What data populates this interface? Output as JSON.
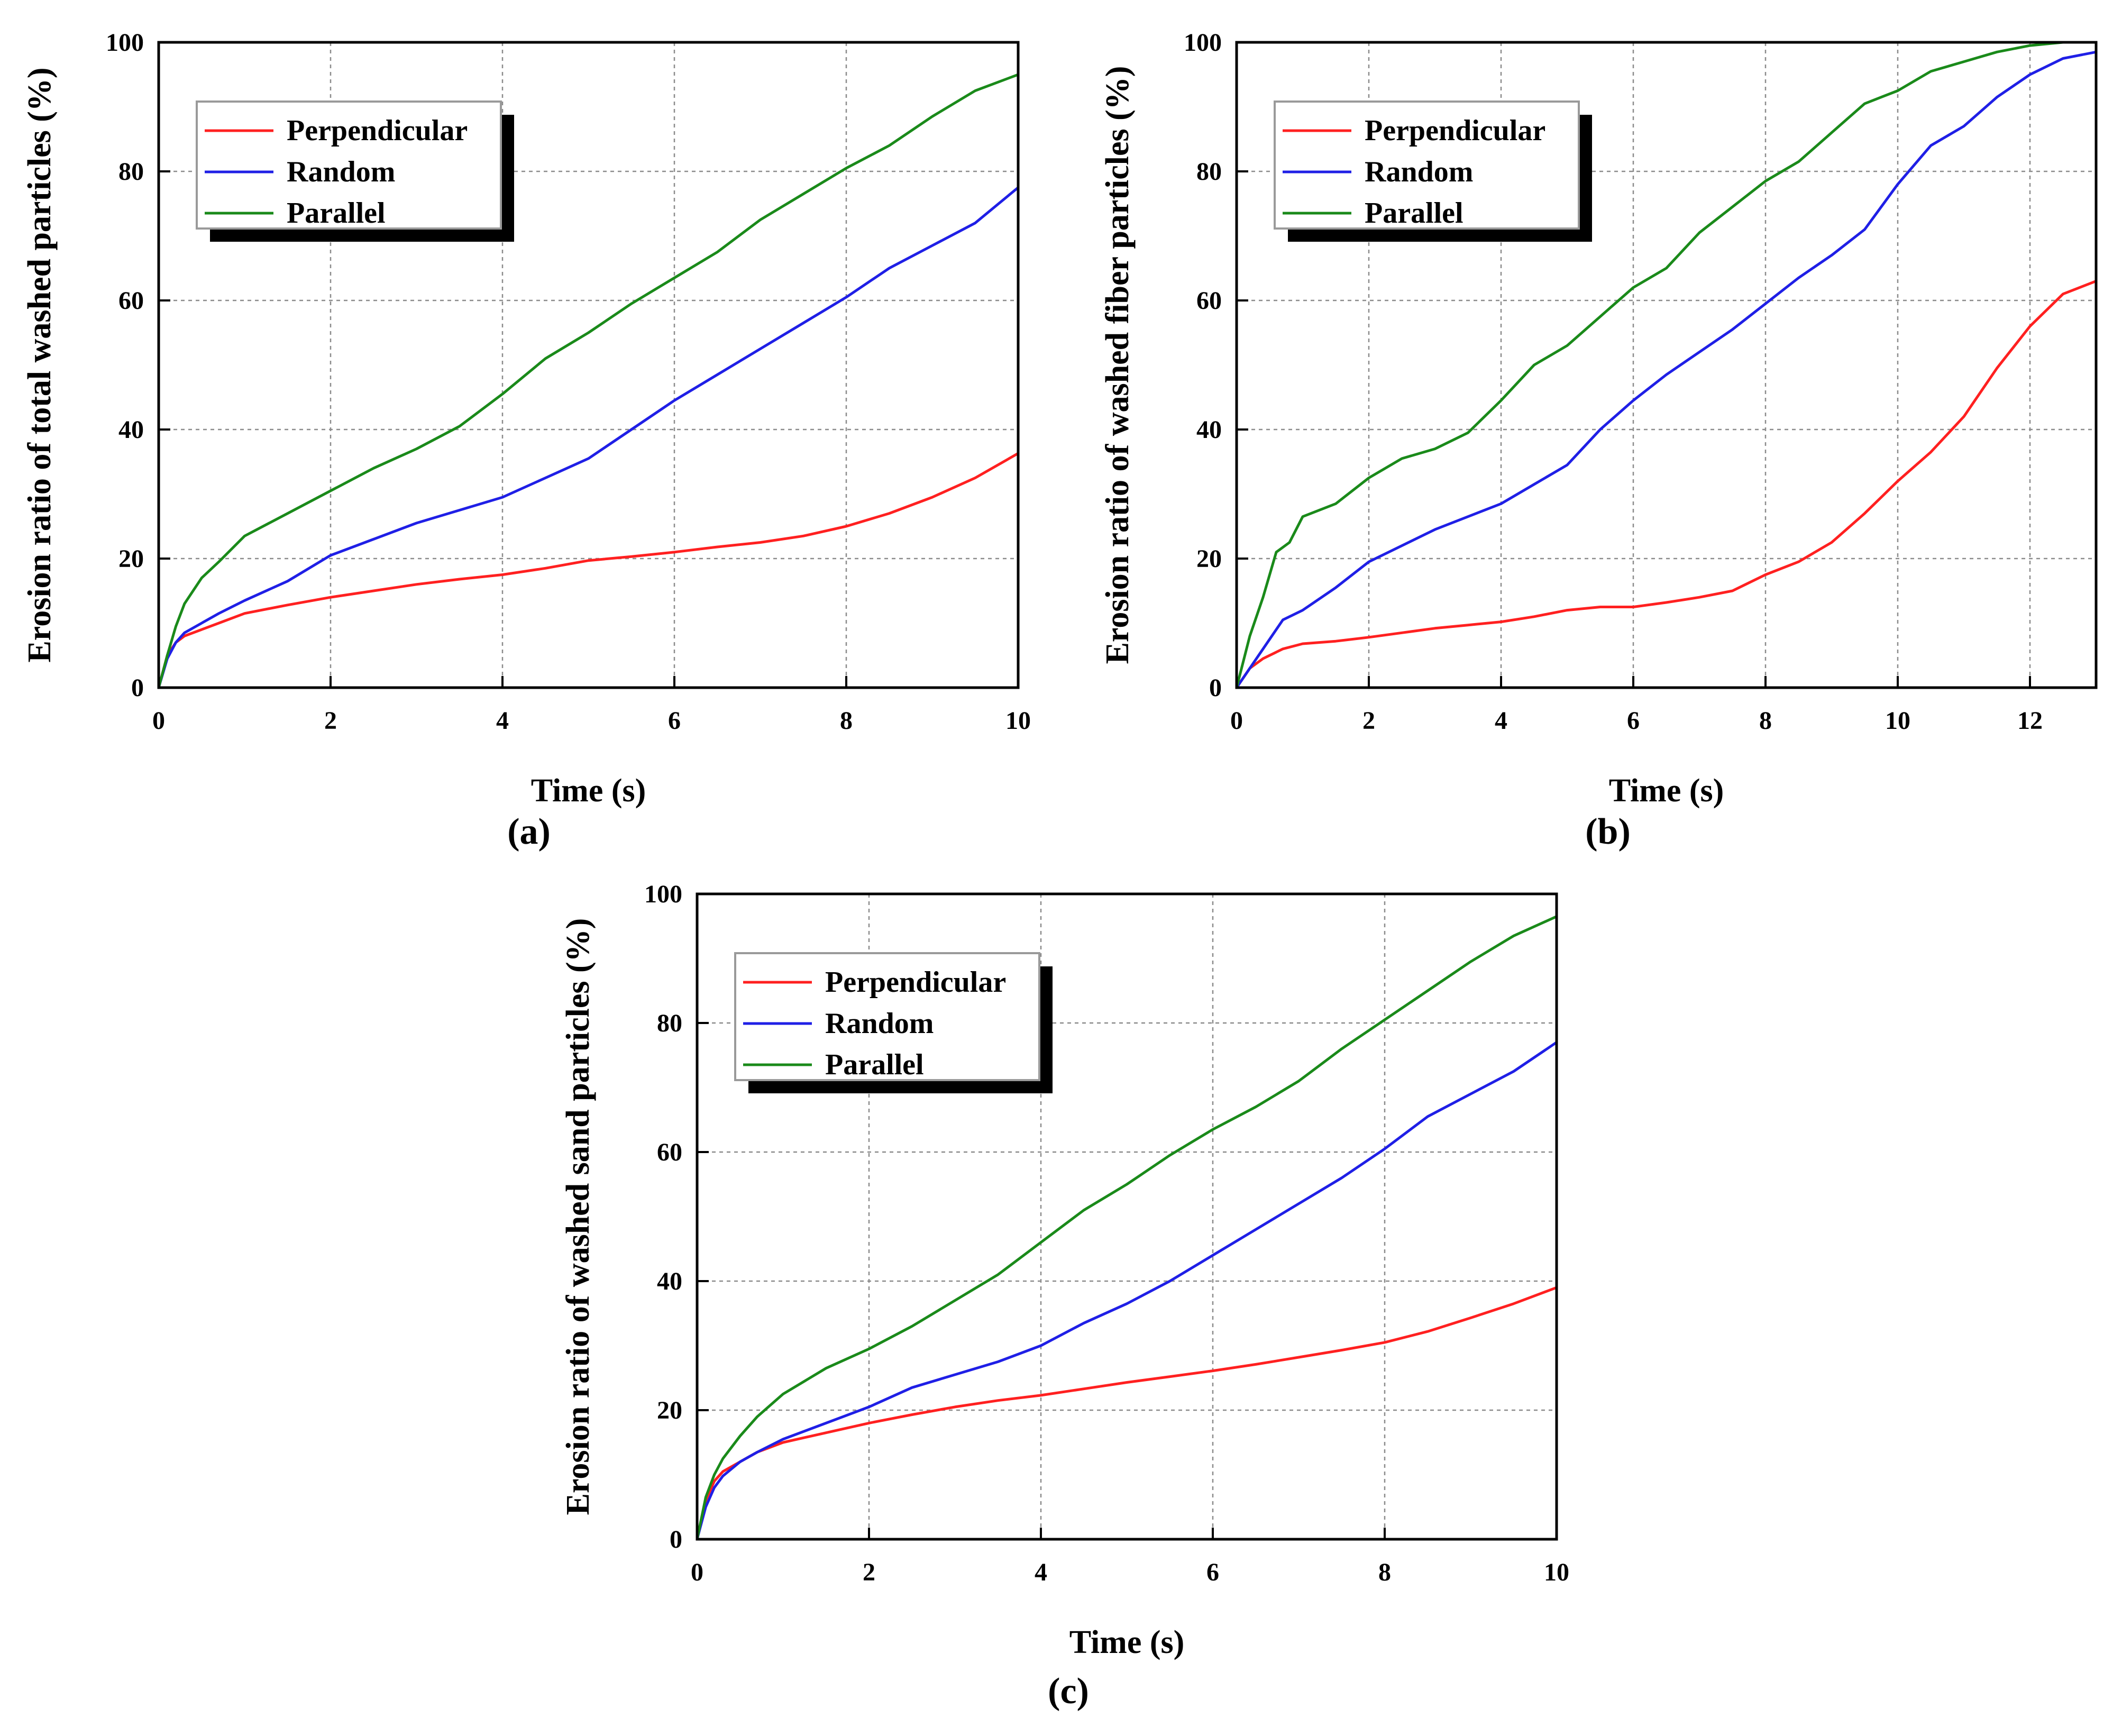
{
  "chart_data": [
    {
      "type": "line",
      "panel": "a",
      "caption": "(a)",
      "xlabel": "Time (s)",
      "ylabel": "Erosion ratio of total washed particles (%)",
      "xlim": [
        0,
        10
      ],
      "ylim": [
        0,
        100
      ],
      "xticks": [
        0,
        2,
        4,
        6,
        8,
        10
      ],
      "yticks": [
        0,
        20,
        40,
        60,
        80,
        100
      ],
      "grid": true,
      "legend_position": "top-left",
      "series": [
        {
          "name": "Perpendicular",
          "color": "#ff2020",
          "x": [
            0,
            0.1,
            0.2,
            0.3,
            0.5,
            0.7,
            1,
            1.5,
            2,
            2.5,
            3,
            3.5,
            4,
            4.5,
            5,
            5.5,
            6,
            6.5,
            7,
            7.5,
            8,
            8.5,
            9,
            9.5,
            10
          ],
          "y": [
            0,
            5,
            7,
            8,
            9,
            10,
            11.5,
            12.8,
            14,
            15,
            16,
            16.8,
            17.5,
            18.5,
            19.7,
            20.3,
            21,
            21.8,
            22.5,
            23.5,
            25,
            27,
            29.5,
            32.5,
            36.3
          ]
        },
        {
          "name": "Random",
          "color": "#1f1fe6",
          "x": [
            0,
            0.1,
            0.2,
            0.3,
            0.5,
            0.7,
            1,
            1.5,
            2,
            2.5,
            3,
            3.5,
            4,
            4.5,
            5,
            5.5,
            6,
            6.5,
            7,
            7.5,
            8,
            8.5,
            9,
            9.5,
            10
          ],
          "y": [
            0,
            4.5,
            7,
            8.5,
            10,
            11.5,
            13.5,
            16.5,
            20.5,
            23,
            25.5,
            27.5,
            29.5,
            32.5,
            35.5,
            40,
            44.5,
            48.5,
            52.5,
            56.5,
            60.5,
            65,
            68.5,
            72,
            77.5
          ]
        },
        {
          "name": "Parallel",
          "color": "#1a8a1a",
          "x": [
            0,
            0.1,
            0.2,
            0.3,
            0.5,
            0.7,
            1,
            1.5,
            2,
            2.5,
            3,
            3.5,
            4,
            4.5,
            5,
            5.5,
            6,
            6.5,
            7,
            7.5,
            8,
            8.5,
            9,
            9.5,
            10
          ],
          "y": [
            0,
            5,
            9.5,
            13,
            17,
            19.5,
            23.5,
            27,
            30.5,
            34,
            37,
            40.5,
            45.5,
            51,
            55,
            59.5,
            63.5,
            67.5,
            72.5,
            76.5,
            80.5,
            84,
            88.5,
            92.5,
            95
          ]
        }
      ]
    },
    {
      "type": "line",
      "panel": "b",
      "caption": "(b)",
      "xlabel": "Time (s)",
      "ylabel": "Erosion ratio of washed fiber particles (%)",
      "xlim": [
        0,
        13
      ],
      "ylim": [
        0,
        100
      ],
      "xticks": [
        0,
        2,
        4,
        6,
        8,
        10,
        12
      ],
      "yticks": [
        0,
        20,
        40,
        60,
        80,
        100
      ],
      "grid": true,
      "legend_position": "top-left",
      "series": [
        {
          "name": "Perpendicular",
          "color": "#ff2020",
          "x": [
            0,
            0.2,
            0.4,
            0.7,
            1,
            1.5,
            2,
            2.5,
            3,
            3.5,
            4,
            4.5,
            5,
            5.5,
            6,
            6.5,
            7,
            7.5,
            8,
            8.5,
            9,
            9.5,
            10,
            10.5,
            11,
            11.5,
            12,
            12.5,
            13
          ],
          "y": [
            0,
            3,
            4.5,
            6,
            6.8,
            7.2,
            7.8,
            8.5,
            9.2,
            9.7,
            10.2,
            11,
            12,
            12.5,
            12.5,
            13.2,
            14,
            15,
            17.5,
            19.5,
            22.5,
            27,
            32,
            36.5,
            42,
            49.5,
            56,
            61,
            63
          ]
        },
        {
          "name": "Random",
          "color": "#1f1fe6",
          "x": [
            0,
            0.2,
            0.4,
            0.7,
            1,
            1.5,
            2,
            2.5,
            3,
            3.5,
            4,
            4.5,
            5,
            5.5,
            6,
            6.5,
            7,
            7.5,
            8,
            8.5,
            9,
            9.5,
            10,
            10.5,
            11,
            11.5,
            12,
            12.5,
            13
          ],
          "y": [
            0,
            3,
            6,
            10.5,
            12,
            15.5,
            19.5,
            22,
            24.5,
            26.5,
            28.5,
            31.5,
            34.5,
            40,
            44.5,
            48.5,
            52,
            55.5,
            59.5,
            63.5,
            67,
            71,
            78,
            84,
            87,
            91.5,
            95,
            97.5,
            98.5
          ]
        },
        {
          "name": "Parallel",
          "color": "#1a8a1a",
          "x": [
            0,
            0.2,
            0.4,
            0.6,
            0.8,
            1,
            1.5,
            2,
            2.5,
            3,
            3.5,
            4,
            4.5,
            5,
            5.5,
            6,
            6.5,
            7,
            7.5,
            8,
            8.5,
            9,
            9.5,
            10,
            10.5,
            11,
            11.5,
            12,
            12.5,
            13
          ],
          "y": [
            0,
            8,
            14,
            21,
            22.5,
            26.5,
            28.5,
            32.5,
            35.5,
            37,
            39.5,
            44.5,
            50,
            53,
            57.5,
            62,
            65,
            70.5,
            74.5,
            78.5,
            81.5,
            86,
            90.5,
            92.5,
            95.5,
            97,
            98.5,
            99.5,
            100,
            100
          ]
        }
      ]
    },
    {
      "type": "line",
      "panel": "c",
      "caption": "(c)",
      "xlabel": "Time (s)",
      "ylabel": "Erosion ratio of washed sand particles (%)",
      "xlim": [
        0,
        10
      ],
      "ylim": [
        0,
        100
      ],
      "xticks": [
        0,
        2,
        4,
        6,
        8,
        10
      ],
      "yticks": [
        0,
        20,
        40,
        60,
        80,
        100
      ],
      "grid": true,
      "legend_position": "top-left",
      "series": [
        {
          "name": "Perpendicular",
          "color": "#ff2020",
          "x": [
            0,
            0.1,
            0.2,
            0.3,
            0.5,
            0.7,
            1,
            1.5,
            2,
            2.5,
            3,
            3.5,
            4,
            4.5,
            5,
            5.5,
            6,
            6.5,
            7,
            7.5,
            8,
            8.5,
            9,
            9.5,
            10
          ],
          "y": [
            0,
            6,
            9,
            10.5,
            12,
            13.5,
            15,
            16.5,
            18,
            19.3,
            20.5,
            21.5,
            22.3,
            23.3,
            24.3,
            25.2,
            26.1,
            27.1,
            28.2,
            29.3,
            30.5,
            32.2,
            34.3,
            36.5,
            39
          ]
        },
        {
          "name": "Random",
          "color": "#1f1fe6",
          "x": [
            0,
            0.1,
            0.2,
            0.3,
            0.5,
            0.7,
            1,
            1.5,
            2,
            2.5,
            3,
            3.5,
            4,
            4.5,
            5,
            5.5,
            6,
            6.5,
            7,
            7.5,
            8,
            8.5,
            9,
            9.5,
            10
          ],
          "y": [
            0,
            5,
            8,
            9.8,
            12,
            13.5,
            15.5,
            18,
            20.5,
            23.5,
            25.5,
            27.5,
            30,
            33.5,
            36.5,
            40,
            44,
            48,
            52,
            56,
            60.5,
            65.5,
            69,
            72.5,
            77
          ]
        },
        {
          "name": "Parallel",
          "color": "#1a8a1a",
          "x": [
            0,
            0.1,
            0.2,
            0.3,
            0.5,
            0.7,
            1,
            1.5,
            2,
            2.5,
            3,
            3.5,
            4,
            4.5,
            5,
            5.5,
            6,
            6.5,
            7,
            7.5,
            8,
            8.5,
            9,
            9.5,
            10
          ],
          "y": [
            0,
            6.5,
            10,
            12.5,
            16,
            19,
            22.5,
            26.5,
            29.5,
            33,
            37,
            41,
            46,
            51,
            55,
            59.5,
            63.5,
            67,
            71,
            76,
            80.5,
            85,
            89.5,
            93.5,
            96.5
          ]
        }
      ]
    }
  ]
}
